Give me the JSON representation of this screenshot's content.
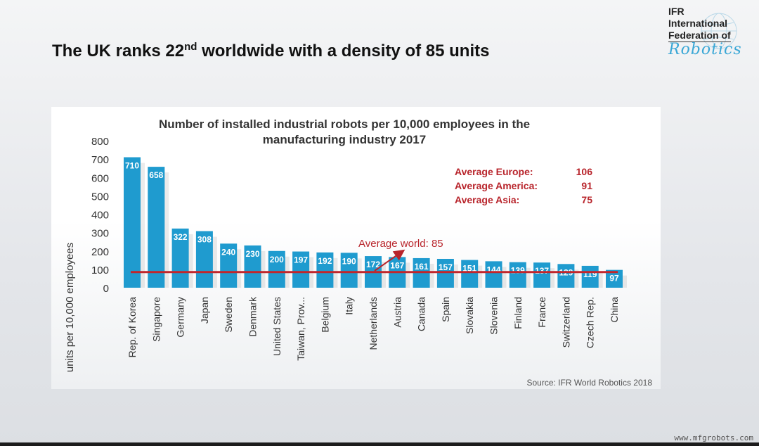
{
  "headline": {
    "pre": "The UK ranks 22",
    "sup": "nd",
    "post": " worldwide with a density of 85 units"
  },
  "logo": {
    "line1": "IFR",
    "line2": "International",
    "line3": "Federation of",
    "line4": "Robotics"
  },
  "watermark": "www.mfgrobots.com",
  "chart_data": {
    "type": "bar",
    "title": "Number of installed industrial robots per 10,000 employees in the manufacturing industry 2017",
    "title_lines": [
      "Number of installed industrial robots per 10,000 employees in the",
      "manufacturing industry 2017"
    ],
    "ylabel": "units per 10,000 employees",
    "xlabel": "",
    "ylim": [
      0,
      800
    ],
    "yticks": [
      0,
      100,
      200,
      300,
      400,
      500,
      600,
      700,
      800
    ],
    "grid": false,
    "categories": [
      "Rep. of Korea",
      "Singapore",
      "Germany",
      "Japan",
      "Sweden",
      "Denmark",
      "United States",
      "Taiwan, Prov...",
      "Belgium",
      "Italy",
      "Netherlands",
      "Austria",
      "Canada",
      "Spain",
      "Slovakia",
      "Slovenia",
      "Finland",
      "France",
      "Switzerland",
      "Czech Rep.",
      "China"
    ],
    "values": [
      710,
      658,
      322,
      308,
      240,
      230,
      200,
      197,
      192,
      190,
      172,
      167,
      161,
      157,
      151,
      144,
      139,
      137,
      129,
      119,
      97
    ],
    "reference_line": {
      "label": "Average world: 85",
      "value": 85
    },
    "annotations": [
      {
        "label": "Average Europe:",
        "value": "106"
      },
      {
        "label": "Average America:",
        "value": "91"
      },
      {
        "label": "Average Asia:",
        "value": "75"
      }
    ],
    "source": "Source: IFR World Robotics 2018",
    "colors": {
      "bar": "#1f9bcf",
      "accent": "#b8242b"
    }
  }
}
